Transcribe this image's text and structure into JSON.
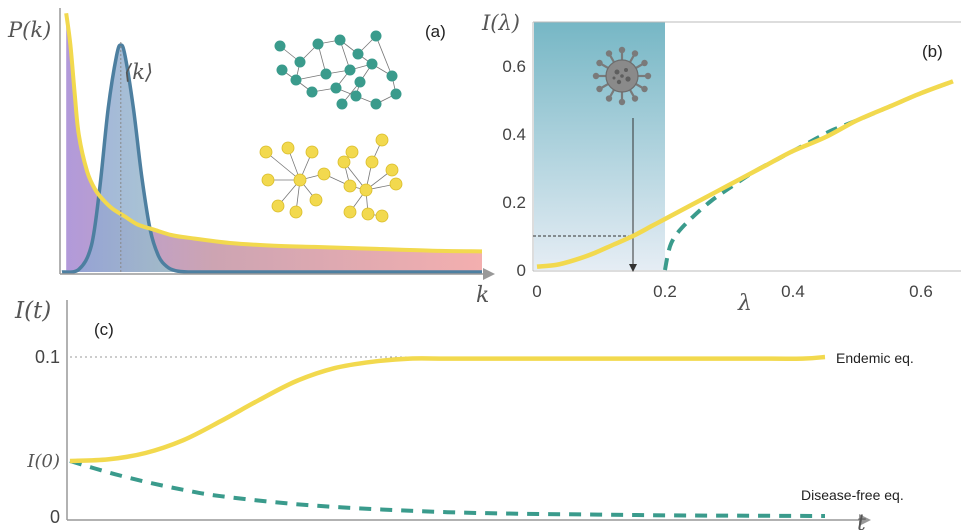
{
  "panel_a": {
    "label": "(a)",
    "ylabel": "P(k)",
    "xlabel": "k",
    "mean_label": "⟨k⟩"
  },
  "panel_b": {
    "label": "(b)",
    "ylabel": "I(λ)",
    "xlabel": "λ"
  },
  "panel_c": {
    "label": "(c)",
    "ylabel": "I(t)",
    "xlabel": "t",
    "annot_endemic": "Endemic eq.",
    "annot_disease_free": "Disease-free eq."
  },
  "colors": {
    "yellow": "#f2d94e",
    "teal": "#3a9b8c",
    "blue_curve": "#4d7fa0",
    "purple_fill": "#a98fd6",
    "green_fill": "#a8dcbf",
    "pink_fill": "#f0a8a8",
    "shade_top": "#6fb3c2",
    "shade_bottom": "#dfe8f1"
  },
  "chart_data": [
    {
      "type": "area",
      "panel": "a",
      "x_range": [
        0,
        1
      ],
      "y_range": [
        0,
        1
      ],
      "series": [
        {
          "kind": "heavy-tailed",
          "x": [
            0.01,
            0.02,
            0.03,
            0.04,
            0.06,
            0.08,
            0.1,
            0.12,
            0.15,
            0.18,
            0.22,
            0.26,
            0.3,
            0.4,
            0.5,
            0.6,
            0.7,
            0.8,
            0.9,
            1.0
          ],
          "y": [
            0.98,
            0.86,
            0.68,
            0.52,
            0.38,
            0.31,
            0.27,
            0.24,
            0.21,
            0.18,
            0.16,
            0.14,
            0.13,
            0.11,
            0.1,
            0.095,
            0.09,
            0.085,
            0.08,
            0.078
          ]
        },
        {
          "kind": "peaked",
          "mean_x": 0.14,
          "x": [
            0.0,
            0.04,
            0.07,
            0.09,
            0.11,
            0.13,
            0.14,
            0.15,
            0.17,
            0.19,
            0.21,
            0.23,
            0.25,
            0.27,
            0.3,
            0.35,
            1.0
          ],
          "y": [
            0.0,
            0.01,
            0.1,
            0.32,
            0.62,
            0.82,
            0.86,
            0.82,
            0.62,
            0.36,
            0.16,
            0.06,
            0.02,
            0.005,
            0.0,
            0.0,
            0.0
          ]
        }
      ]
    },
    {
      "type": "line",
      "panel": "b",
      "xticks": [
        "0",
        "0.2",
        "0.4",
        "0.6"
      ],
      "yticks": [
        "0",
        "0.2",
        "0.4",
        "0.6"
      ],
      "xlim": [
        0,
        0.65
      ],
      "ylim": [
        0,
        0.65
      ],
      "shaded_region_x": [
        0,
        0.2
      ],
      "marker": {
        "x": 0.15,
        "y": 0.1
      },
      "series": [
        {
          "kind": "solid",
          "x": [
            0,
            0.03,
            0.06,
            0.09,
            0.12,
            0.15,
            0.18,
            0.2,
            0.24,
            0.28,
            0.32,
            0.36,
            0.4,
            0.45,
            0.5,
            0.55,
            0.6,
            0.65
          ],
          "y": [
            0.01,
            0.015,
            0.03,
            0.05,
            0.075,
            0.1,
            0.13,
            0.15,
            0.19,
            0.23,
            0.27,
            0.31,
            0.35,
            0.39,
            0.44,
            0.48,
            0.52,
            0.555
          ]
        },
        {
          "kind": "dashed",
          "x": [
            0.2,
            0.205,
            0.21,
            0.22,
            0.24,
            0.27,
            0.3,
            0.34,
            0.38,
            0.42,
            0.46,
            0.5,
            0.55,
            0.6,
            0.65
          ],
          "y": [
            0.0,
            0.05,
            0.08,
            0.11,
            0.15,
            0.2,
            0.24,
            0.29,
            0.33,
            0.37,
            0.41,
            0.44,
            0.48,
            0.52,
            0.555
          ]
        }
      ]
    },
    {
      "type": "line",
      "panel": "c",
      "yticks": [
        "0",
        "I(0)",
        "0.1"
      ],
      "tick_values": [
        0,
        0.035,
        0.1
      ],
      "t_range": [
        0,
        1
      ],
      "series": [
        {
          "kind": "solid",
          "t": [
            0.0,
            0.05,
            0.1,
            0.15,
            0.2,
            0.25,
            0.3,
            0.35,
            0.4,
            0.45,
            0.5,
            0.6,
            0.7,
            0.8,
            0.9,
            0.97,
            1.0
          ],
          "y": [
            0.035,
            0.036,
            0.04,
            0.048,
            0.06,
            0.073,
            0.085,
            0.093,
            0.097,
            0.099,
            0.099,
            0.099,
            0.099,
            0.099,
            0.099,
            0.099,
            0.1
          ]
        },
        {
          "kind": "dashed",
          "t": [
            0.0,
            0.05,
            0.1,
            0.15,
            0.2,
            0.3,
            0.4,
            0.5,
            0.6,
            0.7,
            0.8,
            0.9,
            1.0
          ],
          "y": [
            0.035,
            0.028,
            0.022,
            0.017,
            0.013,
            0.008,
            0.005,
            0.003,
            0.002,
            0.0015,
            0.001,
            0.0008,
            0.0006
          ]
        }
      ]
    }
  ]
}
